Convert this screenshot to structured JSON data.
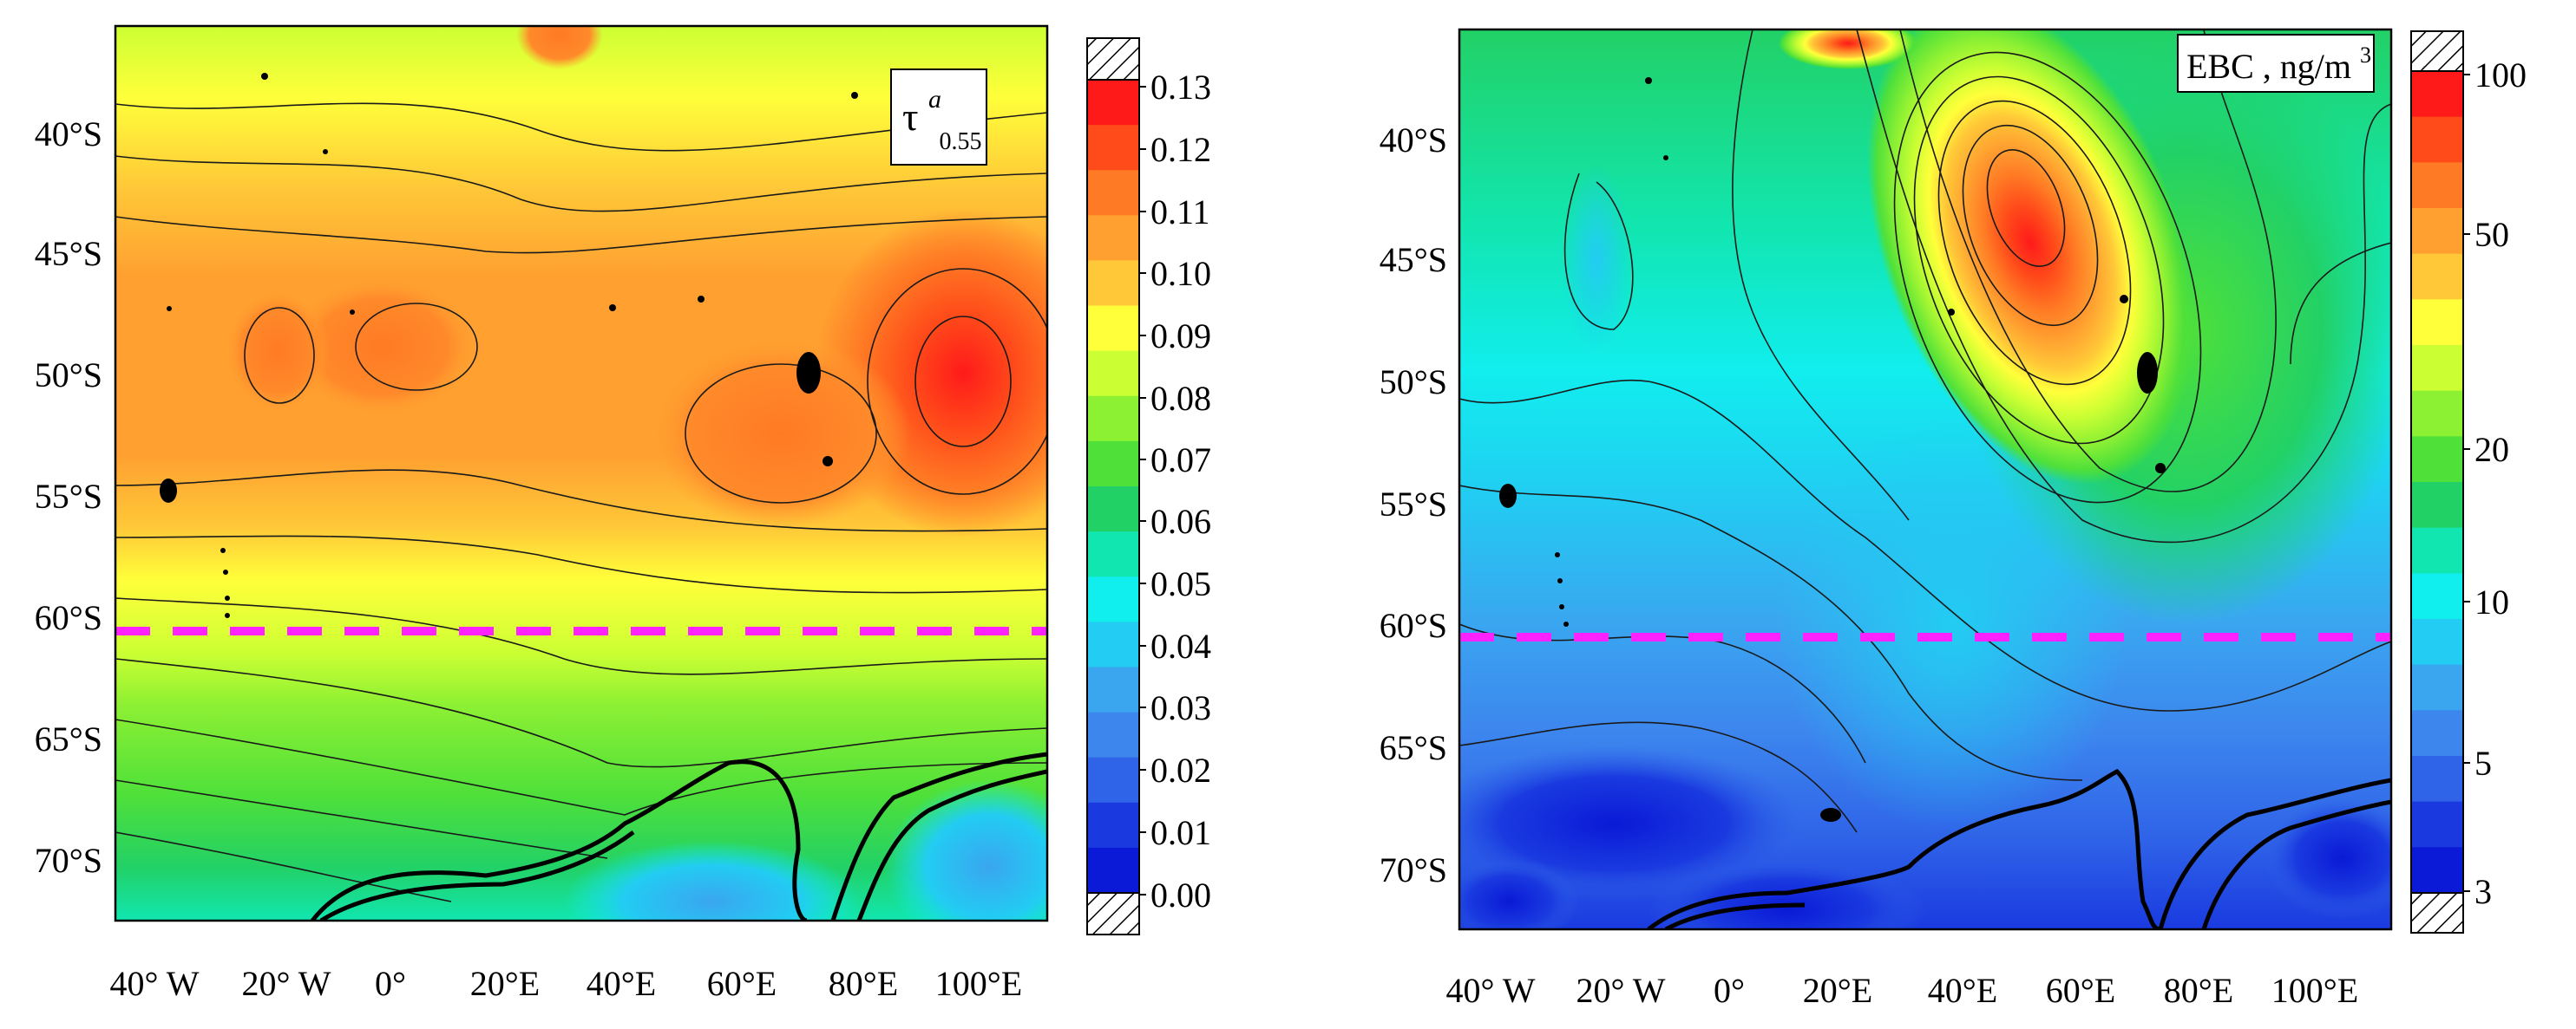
{
  "panels": [
    {
      "id": "left",
      "variable_symbol": "τ",
      "variable_superscript": "a",
      "variable_subscript": "0.55",
      "latitude_labels": [
        "40°S",
        "45°S",
        "50°S",
        "55°S",
        "60°S",
        "65°S",
        "70°S"
      ],
      "longitude_labels": [
        "40° W",
        "20° W",
        "0°",
        "20°E",
        "40°E",
        "60°E",
        "80°E",
        "100°E"
      ],
      "colorbar_ticks": [
        "0.13",
        "0.12",
        "0.11",
        "0.10",
        "0.09",
        "0.08",
        "0.07",
        "0.06",
        "0.05",
        "0.04",
        "0.03",
        "0.02",
        "0.01",
        "0.00"
      ],
      "colorbar_colors": [
        "#ff1a1a",
        "#ff4a1a",
        "#ff7a24",
        "#ffa030",
        "#ffc838",
        "#ffff3a",
        "#ccff33",
        "#8cf033",
        "#4fe03a",
        "#22d166",
        "#11e6b0",
        "#11eeee",
        "#22ccf2",
        "#3aa6f0",
        "#3d86ee",
        "#2f63e8",
        "#1a3ae0",
        "#0a1ad6"
      ],
      "dashed_line_color": "#ff22ff",
      "dashed_line_latitude": "60°S"
    },
    {
      "id": "right",
      "variable_label": "EBC , ng/m",
      "variable_superscript": "3",
      "latitude_labels": [
        "40°S",
        "45°S",
        "50°S",
        "55°S",
        "60°S",
        "65°S",
        "70°S"
      ],
      "longitude_labels": [
        "40° W",
        "20° W",
        "0°",
        "20°E",
        "40°E",
        "60°E",
        "80°E",
        "100°E"
      ],
      "colorbar_ticks": [
        "100",
        "50",
        "20",
        "10",
        "5",
        "3"
      ],
      "colorbar_colors": [
        "#ff1a1a",
        "#ff4a1a",
        "#ff7a24",
        "#ffa030",
        "#ffc838",
        "#ffff3a",
        "#ccff33",
        "#8cf033",
        "#4fe03a",
        "#22d166",
        "#11e6b0",
        "#11eeee",
        "#22ccf2",
        "#3aa6f0",
        "#3d86ee",
        "#2f63e8",
        "#1a3ae0",
        "#0a1ad6"
      ],
      "dashed_line_color": "#ff22ff",
      "dashed_line_latitude": "60°S"
    }
  ]
}
